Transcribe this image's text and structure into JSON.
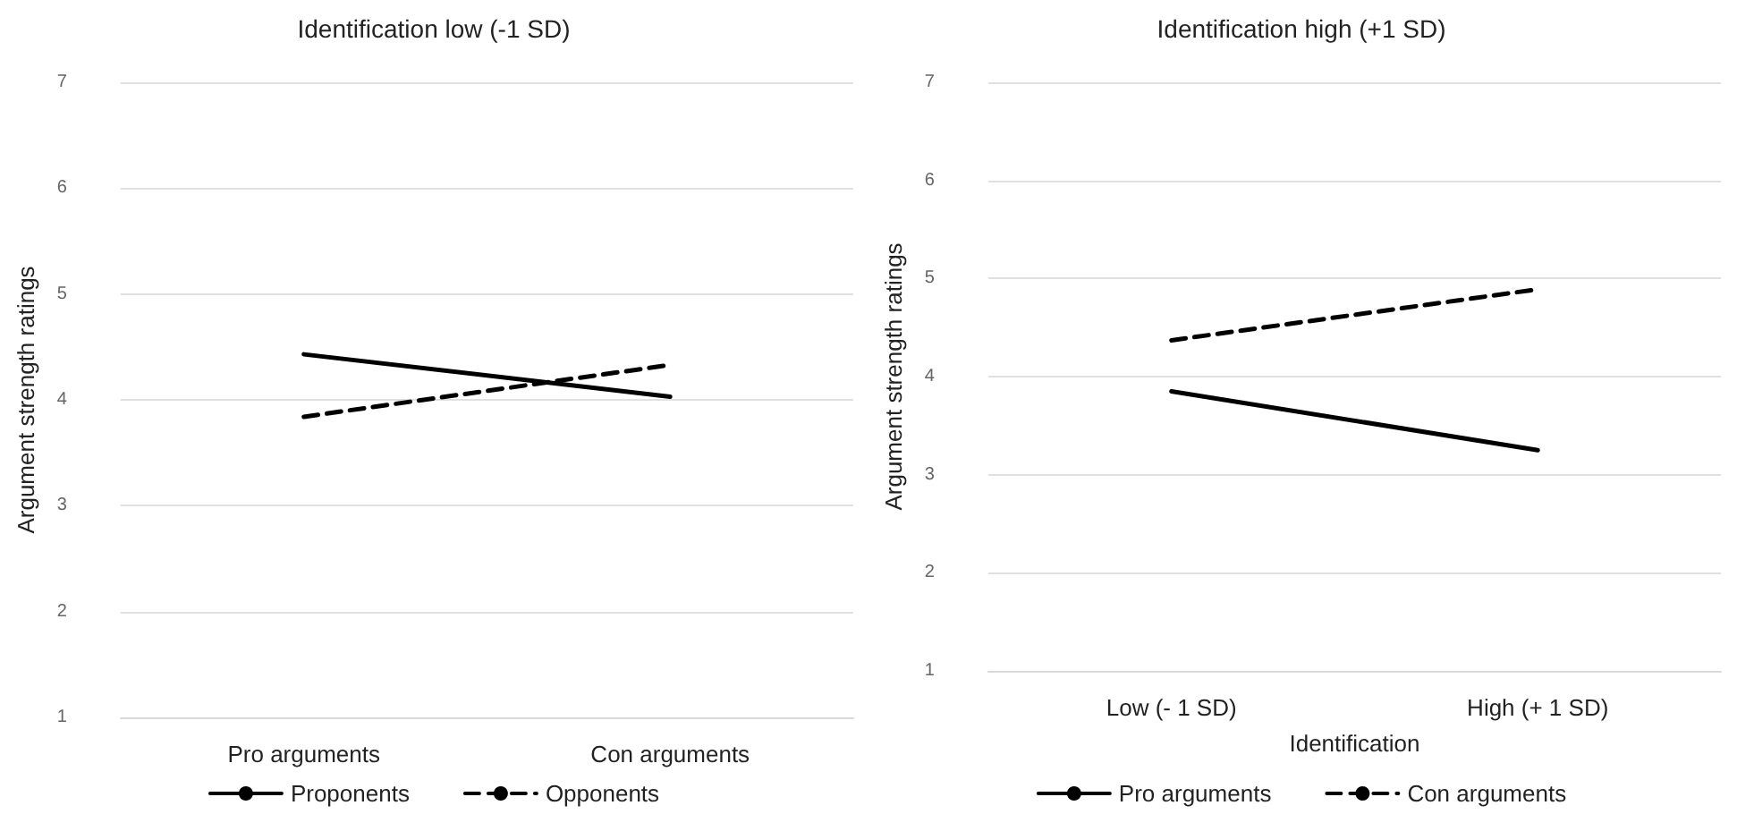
{
  "chart_data": [
    {
      "type": "line",
      "title": "Identification low (-1 SD)",
      "ylabel": "Argument strength ratings",
      "categories": [
        "Pro arguments",
        "Con arguments"
      ],
      "series": [
        {
          "name": "Proponents",
          "color": "#000000",
          "line_style": "solid",
          "values": [
            4.43,
            4.03
          ]
        },
        {
          "name": "Opponents",
          "color": "#000000",
          "line_style": "dashed",
          "values": [
            3.84,
            4.33
          ]
        }
      ],
      "ylim": [
        1,
        7
      ],
      "yticks": [
        1,
        2,
        3,
        4,
        5,
        6,
        7
      ],
      "grid": "y",
      "legend": "bottom",
      "marker": "none"
    },
    {
      "type": "line",
      "title": "Identification high (+1 SD)",
      "xlabel": "Identification",
      "ylabel": "Argument strength ratings",
      "categories": [
        "Low (- 1 SD)",
        "High (+ 1 SD)"
      ],
      "series": [
        {
          "name": "Pro arguments",
          "color": "#000000",
          "line_style": "solid",
          "values": [
            3.85,
            3.25
          ]
        },
        {
          "name": "Con arguments",
          "color": "#000000",
          "line_style": "dashed",
          "values": [
            4.37,
            4.89
          ]
        }
      ],
      "ylim": [
        1,
        7
      ],
      "yticks": [
        1,
        2,
        3,
        4,
        5,
        6,
        7
      ],
      "grid": "y",
      "legend": "bottom",
      "marker": "none"
    }
  ]
}
